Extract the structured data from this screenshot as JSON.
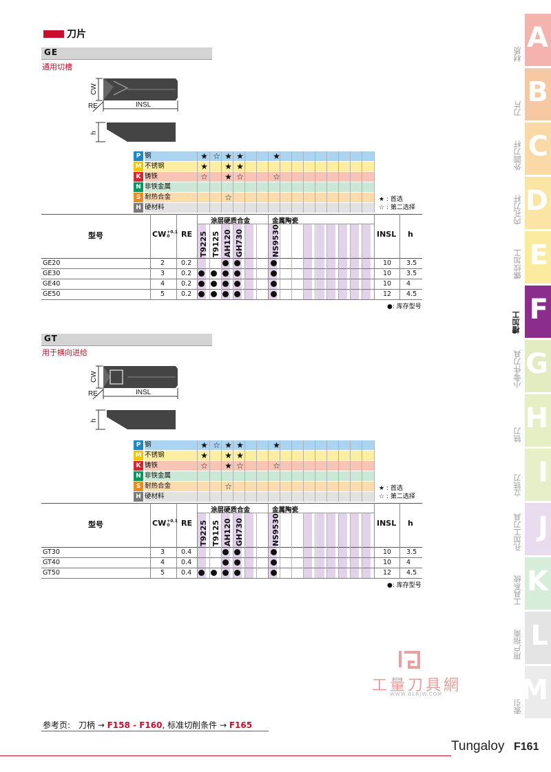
{
  "page_title": "刀片",
  "sections": [
    {
      "code": "GE",
      "subtitle": "通用切槽",
      "drawing_labels": {
        "cw": "CW",
        "re": "RE",
        "insl": "INSL",
        "h": "h"
      },
      "grade_table": {
        "rows": [
          {
            "iso": "P",
            "name": "钢",
            "color": "#aad4f0",
            "iso_color": "#1e88c7",
            "symbols": [
              "★",
              "☆",
              "★",
              "★",
              "",
              "",
              "★"
            ]
          },
          {
            "iso": "M",
            "name": "不锈钢",
            "color": "#fdeea2",
            "iso_color": "#f2c400",
            "symbols": [
              "★",
              "",
              "★",
              "★",
              "",
              "",
              ""
            ]
          },
          {
            "iso": "K",
            "name": "铸铁",
            "color": "#f7c4b6",
            "iso_color": "#d9262e",
            "symbols": [
              "☆",
              "",
              "★",
              "☆",
              "",
              "",
              "☆"
            ]
          },
          {
            "iso": "N",
            "name": "非铁金属",
            "color": "#c9e8d5",
            "iso_color": "#00985f",
            "symbols": [
              "",
              "",
              "",
              "",
              "",
              "",
              ""
            ]
          },
          {
            "iso": "S",
            "name": "耐热合金",
            "color": "#fbdcae",
            "iso_color": "#ea8b1d",
            "symbols": [
              "",
              "",
              "☆",
              "",
              "",
              "",
              ""
            ]
          },
          {
            "iso": "H",
            "name": "硬材料",
            "color": "#e2e2e2",
            "iso_color": "#7a7a7a",
            "symbols": [
              "",
              "",
              "",
              "",
              "",
              "",
              ""
            ]
          }
        ],
        "legend": [
          "★ : 首选",
          "☆ : 第二选择"
        ]
      },
      "table": {
        "group_coated": "涂层硬质合金",
        "group_cermet": "金属陶瓷",
        "headers": {
          "model": "型号",
          "cw": "CW",
          "cw_tol_plus": "+0.1",
          "cw_tol_zero": "0",
          "re": "RE",
          "insl": "INSL",
          "h": "h"
        },
        "grades": [
          "T9225",
          "T9125",
          "AH120",
          "GH730",
          "NS9530"
        ],
        "rows": [
          {
            "model": "GE20",
            "cw": "2",
            "re": "0.2",
            "stock": [
              false,
              false,
              true,
              true,
              true
            ],
            "insl": "10",
            "h": "3.5"
          },
          {
            "model": "GE30",
            "cw": "3",
            "re": "0.2",
            "stock": [
              true,
              true,
              true,
              true,
              true
            ],
            "insl": "10",
            "h": "3.5"
          },
          {
            "model": "GE40",
            "cw": "4",
            "re": "0.2",
            "stock": [
              true,
              true,
              true,
              true,
              true
            ],
            "insl": "10",
            "h": "4"
          },
          {
            "model": "GE50",
            "cw": "5",
            "re": "0.2",
            "stock": [
              true,
              true,
              true,
              true,
              true
            ],
            "insl": "12",
            "h": "4.5"
          }
        ],
        "stock_note": "●: 库存型号"
      }
    },
    {
      "code": "GT",
      "subtitle": "用于横向进给",
      "drawing_labels": {
        "cw": "CW",
        "re": "RE",
        "insl": "INSL",
        "h": "h"
      },
      "grade_table": {
        "rows": [
          {
            "iso": "P",
            "name": "钢",
            "color": "#aad4f0",
            "iso_color": "#1e88c7",
            "symbols": [
              "★",
              "☆",
              "★",
              "★",
              "",
              "",
              "★"
            ]
          },
          {
            "iso": "M",
            "name": "不锈钢",
            "color": "#fdeea2",
            "iso_color": "#f2c400",
            "symbols": [
              "★",
              "",
              "★",
              "★",
              "",
              "",
              ""
            ]
          },
          {
            "iso": "K",
            "name": "铸铁",
            "color": "#f7c4b6",
            "iso_color": "#d9262e",
            "symbols": [
              "☆",
              "",
              "★",
              "☆",
              "",
              "",
              "☆"
            ]
          },
          {
            "iso": "N",
            "name": "非铁金属",
            "color": "#c9e8d5",
            "iso_color": "#00985f",
            "symbols": [
              "",
              "",
              "",
              "",
              "",
              "",
              ""
            ]
          },
          {
            "iso": "S",
            "name": "耐热合金",
            "color": "#fbdcae",
            "iso_color": "#ea8b1d",
            "symbols": [
              "",
              "",
              "☆",
              "",
              "",
              "",
              ""
            ]
          },
          {
            "iso": "H",
            "name": "硬材料",
            "color": "#e2e2e2",
            "iso_color": "#7a7a7a",
            "symbols": [
              "",
              "",
              "",
              "",
              "",
              "",
              ""
            ]
          }
        ],
        "legend": [
          "★ : 首选",
          "☆ : 第二选择"
        ]
      },
      "table": {
        "group_coated": "涂层硬质合金",
        "group_cermet": "金属陶瓷",
        "headers": {
          "model": "型号",
          "cw": "CW",
          "cw_tol_plus": "+0.1",
          "cw_tol_zero": "0",
          "re": "RE",
          "insl": "INSL",
          "h": "h"
        },
        "grades": [
          "T9225",
          "T9125",
          "AH120",
          "GH730",
          "NS9530"
        ],
        "rows": [
          {
            "model": "GT30",
            "cw": "3",
            "re": "0.4",
            "stock": [
              false,
              false,
              true,
              true,
              true
            ],
            "insl": "10",
            "h": "3.5"
          },
          {
            "model": "GT40",
            "cw": "4",
            "re": "0.4",
            "stock": [
              false,
              false,
              true,
              true,
              true
            ],
            "insl": "10",
            "h": "4"
          },
          {
            "model": "GT50",
            "cw": "5",
            "re": "0.4",
            "stock": [
              true,
              true,
              true,
              true,
              true
            ],
            "insl": "12",
            "h": "4.5"
          }
        ],
        "stock_note": "●: 库存型号"
      }
    }
  ],
  "side_tabs": [
    {
      "letter": "A",
      "label": "材质",
      "color": "#f4b3ac",
      "active": false
    },
    {
      "letter": "B",
      "label": "刀片",
      "color": "#f7c9a2",
      "active": false
    },
    {
      "letter": "C",
      "label": "外圆刀杆",
      "color": "#f9d9a6",
      "active": false
    },
    {
      "letter": "D",
      "label": "内孔刀杆",
      "color": "#fbe5a5",
      "active": false
    },
    {
      "letter": "E",
      "label": "螺纹加工",
      "color": "#fbeb9f",
      "active": false
    },
    {
      "letter": "F",
      "label": "槽加工",
      "color": "#8b2d8c",
      "active": true
    },
    {
      "letter": "G",
      "label": "小零件刀具",
      "color": "#e3ecc0",
      "active": false
    },
    {
      "letter": "H",
      "label": "铣刀",
      "color": "#e6eec4",
      "active": false
    },
    {
      "letter": "I",
      "label": "立铣刀",
      "color": "#e7efc8",
      "active": false
    },
    {
      "letter": "J",
      "label": "孔加工刀具",
      "color": "#e9dcee",
      "active": false
    },
    {
      "letter": "K",
      "label": "工具系统",
      "color": "#d6eed9",
      "active": false
    },
    {
      "letter": "L",
      "label": "用户指南",
      "color": "#e4e4e4",
      "active": false
    },
    {
      "letter": "M",
      "label": "索引",
      "color": "#ebebeb",
      "active": false
    }
  ],
  "watermark": {
    "text": "工量刀具網",
    "url": "WWW.GLRJW.COM"
  },
  "reference": {
    "prefix": "参考页:",
    "holder": "刀柄",
    "arrow": "→",
    "range": "F158 - F160",
    "sep": ",",
    "conditions": "标准切削条件",
    "page": "F165"
  },
  "footer": {
    "brand": "Tungaloy",
    "page": "F161"
  }
}
